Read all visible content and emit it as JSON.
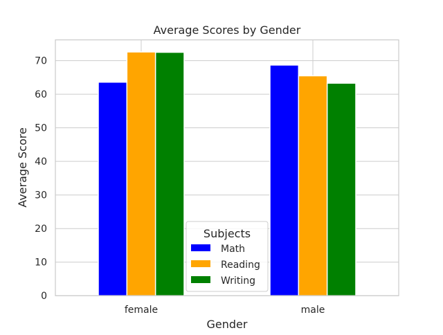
{
  "chart_data": {
    "type": "bar",
    "title": "Average Scores by Gender",
    "xlabel": "Gender",
    "ylabel": "Average Score",
    "categories": [
      "female",
      "male"
    ],
    "series": [
      {
        "name": "Math",
        "values": [
          63.6,
          68.7
        ],
        "color": "#0000ff"
      },
      {
        "name": "Reading",
        "values": [
          72.6,
          65.5
        ],
        "color": "#ffa500"
      },
      {
        "name": "Writing",
        "values": [
          72.5,
          63.3
        ],
        "color": "#008000"
      }
    ],
    "ylim": [
      0,
      76.2
    ],
    "yticks": [
      0,
      10,
      20,
      30,
      40,
      50,
      60,
      70
    ],
    "grid": true,
    "legend": {
      "title": "Subjects",
      "placement": "bottom-center"
    }
  }
}
